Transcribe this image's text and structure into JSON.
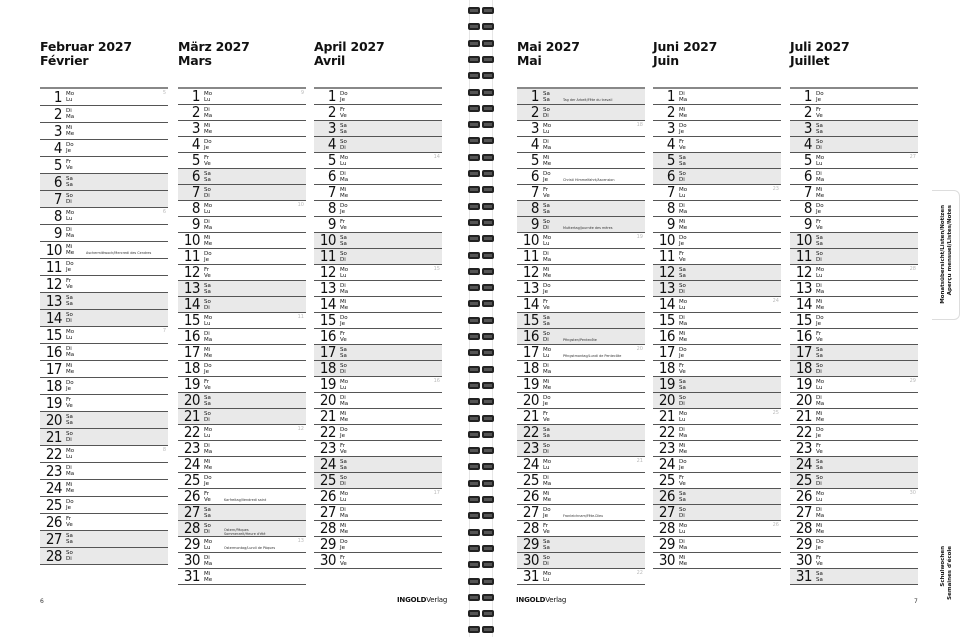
{
  "weekdays": [
    [
      "Mo",
      "Lu"
    ],
    [
      "Di",
      "Ma"
    ],
    [
      "Mi",
      "Me"
    ],
    [
      "Do",
      "Je"
    ],
    [
      "Fr",
      "Ve"
    ],
    [
      "Sa",
      "Sa"
    ],
    [
      "So",
      "Di"
    ]
  ],
  "months": [
    {
      "title_de": "Februar 2027",
      "title_fr": "Février",
      "first_weekday": 0,
      "days": 28,
      "weeks": [
        [
          1,
          "5"
        ],
        [
          8,
          "6"
        ],
        [
          15,
          "7"
        ],
        [
          22,
          "8"
        ]
      ],
      "holidays": [
        [
          10,
          "Aschermittwoch/Mercredi des Cendres"
        ]
      ]
    },
    {
      "title_de": "März 2027",
      "title_fr": "Mars",
      "first_weekday": 0,
      "days": 31,
      "weeks": [
        [
          1,
          "9"
        ],
        [
          8,
          "10"
        ],
        [
          15,
          "11"
        ],
        [
          22,
          "12"
        ],
        [
          29,
          "13"
        ]
      ],
      "holidays": [
        [
          26,
          "Karfreitag/Vendredi saint"
        ],
        [
          28,
          "Ostern/Pâques\nSommerzeit/Heure d'été"
        ],
        [
          29,
          "Ostermontag/Lundi de Pâques"
        ]
      ]
    },
    {
      "title_de": "April 2027",
      "title_fr": "Avril",
      "first_weekday": 3,
      "days": 30,
      "weeks": [
        [
          5,
          "14"
        ],
        [
          12,
          "15"
        ],
        [
          19,
          "16"
        ],
        [
          26,
          "17"
        ]
      ],
      "holidays": []
    },
    {
      "title_de": "Mai 2027",
      "title_fr": "Mai",
      "first_weekday": 5,
      "days": 31,
      "weeks": [
        [
          3,
          "18"
        ],
        [
          10,
          "19"
        ],
        [
          17,
          "20"
        ],
        [
          24,
          "21"
        ],
        [
          31,
          "22"
        ]
      ],
      "holidays": [
        [
          1,
          "Tag der Arbeit/Fête du travail"
        ],
        [
          6,
          "Christi Himmelfahrt/Ascension"
        ],
        [
          9,
          "Muttertag/Journée des mères"
        ],
        [
          16,
          "Pfingsten/Pentecôte"
        ],
        [
          17,
          "Pfingstmontag/Lundi de Pentecôte"
        ],
        [
          27,
          "Fronleichnam/Fête-Dieu"
        ]
      ]
    },
    {
      "title_de": "Juni 2027",
      "title_fr": "Juin",
      "first_weekday": 1,
      "days": 30,
      "weeks": [
        [
          7,
          "23"
        ],
        [
          14,
          "24"
        ],
        [
          21,
          "25"
        ],
        [
          28,
          "26"
        ]
      ],
      "holidays": []
    },
    {
      "title_de": "Juli 2027",
      "title_fr": "Juillet",
      "first_weekday": 3,
      "days": 31,
      "weeks": [
        [
          5,
          "27"
        ],
        [
          12,
          "28"
        ],
        [
          19,
          "29"
        ],
        [
          26,
          "30"
        ]
      ],
      "holidays": []
    }
  ],
  "tabs": {
    "top_de": "Monatsübersicht/Listen/Notizen",
    "top_fr": "Aperçu mensuel/Listes/Notes",
    "bottom_de": "Schulwochen",
    "bottom_fr": "Semaines d'école"
  },
  "footer": {
    "page_left": "6",
    "page_right": "7",
    "logo_bold": "INGOLD",
    "logo_light": "Verlag"
  }
}
